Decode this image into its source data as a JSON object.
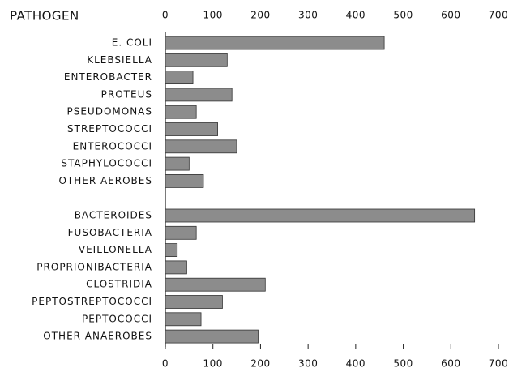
{
  "chart_data": {
    "type": "bar",
    "orientation": "horizontal",
    "title": "PATHOGEN",
    "categories": [
      "E. COLI",
      "KLEBSIELLA",
      "ENTEROBACTER",
      "PROTEUS",
      "PSEUDOMONAS",
      "STREPTOCOCCI",
      "ENTEROCOCCI",
      "STAPHYLOCOCCI",
      "OTHER AEROBES",
      null,
      "BACTEROIDES",
      "FUSOBACTERIA",
      "VEILLONELLA",
      "PROPRIONIBACTERIA",
      "CLOSTRIDIA",
      "PEPTOSTREPTOCOCCI",
      "PEPTOCOCCI",
      "OTHER ANAEROBES"
    ],
    "values": [
      460,
      130,
      58,
      140,
      65,
      110,
      150,
      50,
      80,
      null,
      650,
      65,
      25,
      45,
      210,
      120,
      75,
      195
    ],
    "color": "#8c8c8c",
    "xlim": [
      0,
      700
    ],
    "xticks": [
      0,
      100,
      200,
      300,
      400,
      500,
      600,
      700
    ],
    "grid": false
  }
}
